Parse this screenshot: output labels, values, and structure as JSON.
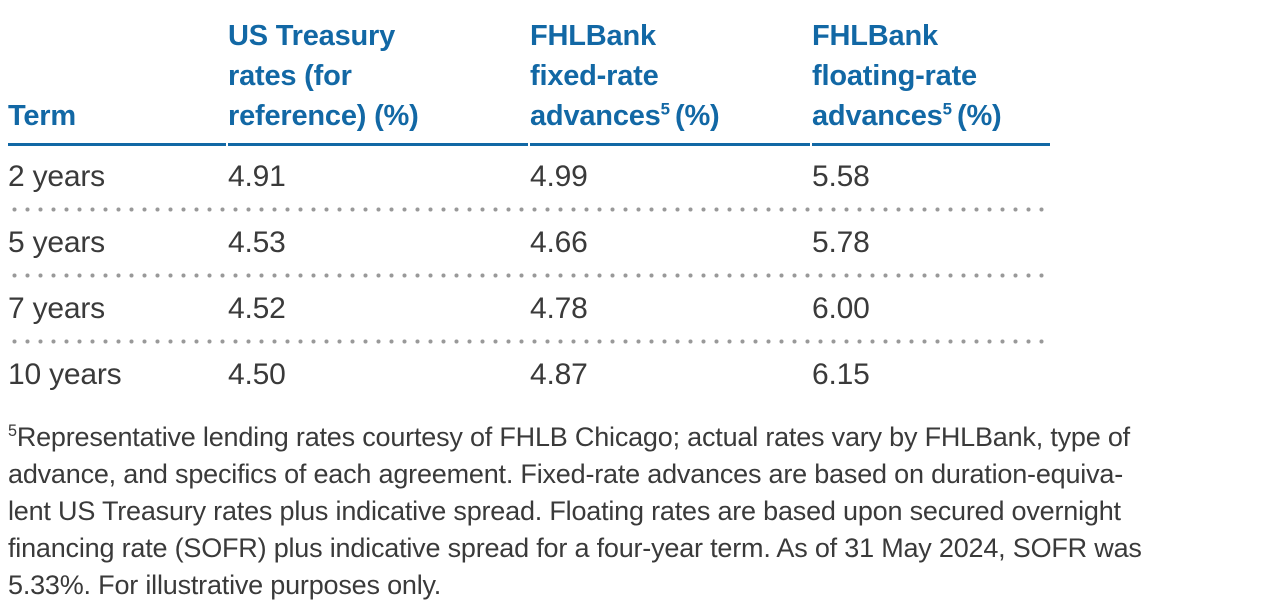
{
  "colors": {
    "header_blue": "#1268a5",
    "body_text": "#3a3a3a",
    "dot_gray": "#999999"
  },
  "table": {
    "header": {
      "term": "Term",
      "treasury": {
        "l1": "US Treasury",
        "l2": "rates (for",
        "l3": "reference) (%)"
      },
      "fixed": {
        "l1": "FHLBank",
        "l2": "fixed-rate",
        "l3a": "advances",
        "sup": "5",
        "l3b": "(%)"
      },
      "floating": {
        "l1": "FHLBank",
        "l2": "floating-rate",
        "l3a": "advances",
        "sup": "5",
        "l3b": "(%)"
      }
    },
    "rows": [
      {
        "term": "2 years",
        "treasury": "4.91",
        "fixed": "4.99",
        "floating": "5.58"
      },
      {
        "term": "5 years",
        "treasury": "4.53",
        "fixed": "4.66",
        "floating": "5.78"
      },
      {
        "term": "7 years",
        "treasury": "4.52",
        "fixed": "4.78",
        "floating": "6.00"
      },
      {
        "term": "10 years",
        "treasury": "4.50",
        "fixed": "4.87",
        "floating": "6.15"
      }
    ]
  },
  "footnote": {
    "sup": "5",
    "lines": [
      "Representative lending rates courtesy of FHLB Chicago; actual rates vary by FHLBank, type of",
      "advance, and specifics of each agreement. Fixed-rate advances are based on duration-equiva-",
      "lent US Treasury rates plus indicative spread. Floating rates are based upon secured overnight",
      "financing rate (SOFR) plus indicative spread for a four-year term. As of 31 May 2024, SOFR was",
      "5.33%. For illustrative purposes only."
    ]
  },
  "chart_data": {
    "type": "table",
    "columns": [
      "Term",
      "US Treasury rates (for reference) (%)",
      "FHLBank fixed-rate advances⁵ (%)",
      "FHLBank floating-rate advances⁵ (%)"
    ],
    "rows": [
      [
        "2 years",
        "4.91",
        "4.99",
        "5.58"
      ],
      [
        "5 years",
        "4.53",
        "4.66",
        "5.78"
      ],
      [
        "7 years",
        "4.52",
        "4.78",
        "6.00"
      ],
      [
        "10 years",
        "4.50",
        "4.87",
        "6.15"
      ]
    ]
  }
}
